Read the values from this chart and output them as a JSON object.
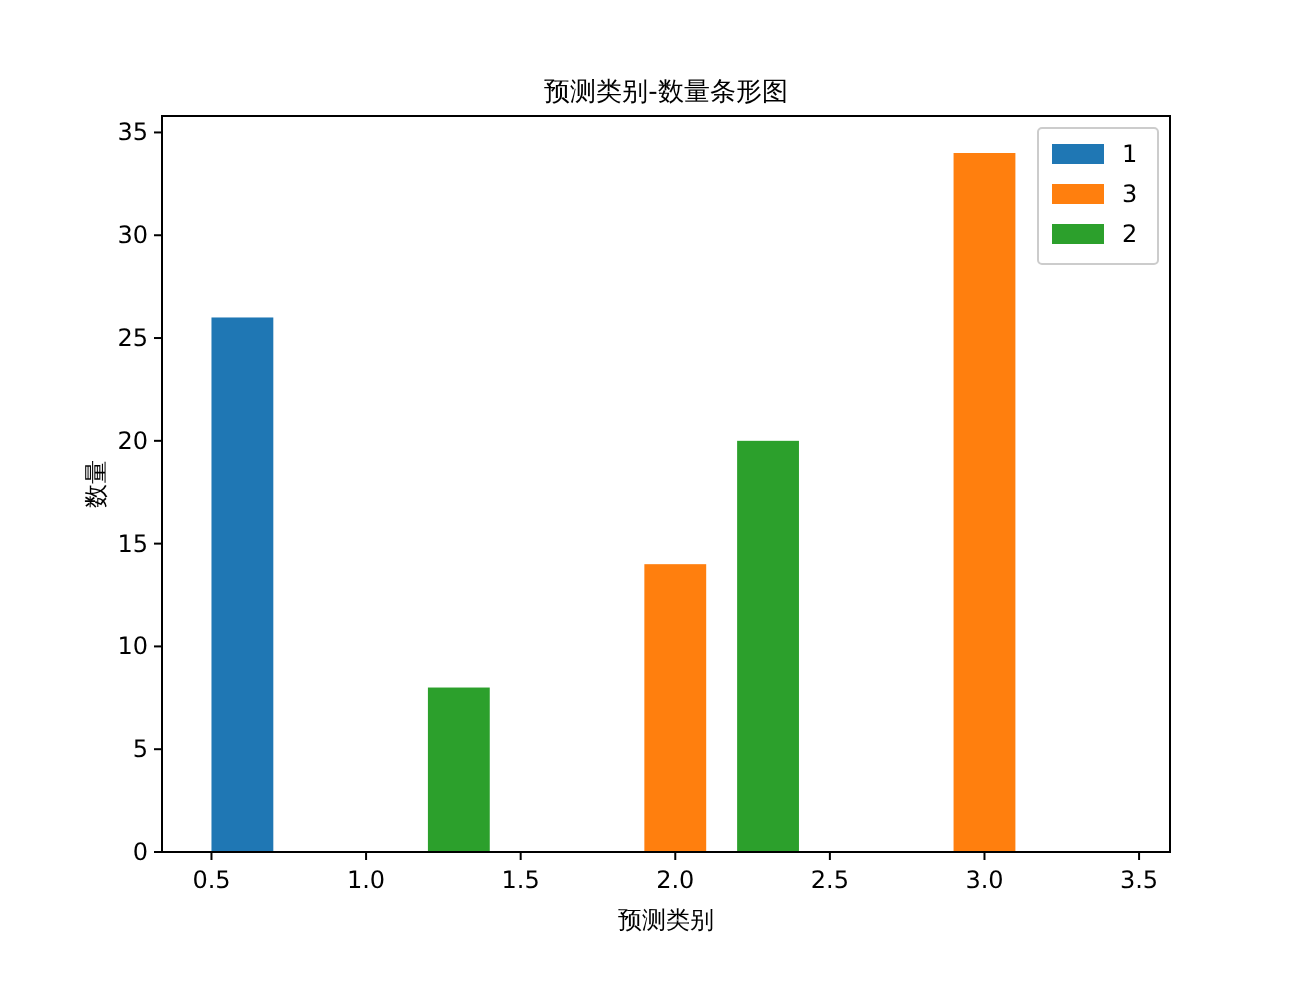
{
  "chart_data": {
    "type": "bar",
    "title": "预测类别-数量条形图",
    "xlabel": "预测类别",
    "ylabel": "数量",
    "xlim": [
      0.34,
      3.6
    ],
    "xticks": [
      {
        "value": 0.5,
        "label": "0.5"
      },
      {
        "value": 1.0,
        "label": "1.0"
      },
      {
        "value": 1.5,
        "label": "1.5"
      },
      {
        "value": 2.0,
        "label": "2.0"
      },
      {
        "value": 2.5,
        "label": "2.5"
      },
      {
        "value": 3.0,
        "label": "3.0"
      },
      {
        "value": 3.5,
        "label": "3.5"
      }
    ],
    "ylim": [
      0,
      35.8
    ],
    "yticks": [
      0,
      5,
      10,
      15,
      20,
      25,
      30,
      35
    ],
    "legend": "top right",
    "series": [
      {
        "name": "1",
        "color": "#1f77b4",
        "x": [
          0.6
        ],
        "values": [
          26
        ]
      },
      {
        "name": "3",
        "color": "#ff7f0e",
        "x": [
          2.0,
          3.0
        ],
        "values": [
          14,
          34
        ]
      },
      {
        "name": "2",
        "color": "#2ca02c",
        "x": [
          1.3,
          2.3
        ],
        "values": [
          8,
          20
        ]
      }
    ]
  }
}
